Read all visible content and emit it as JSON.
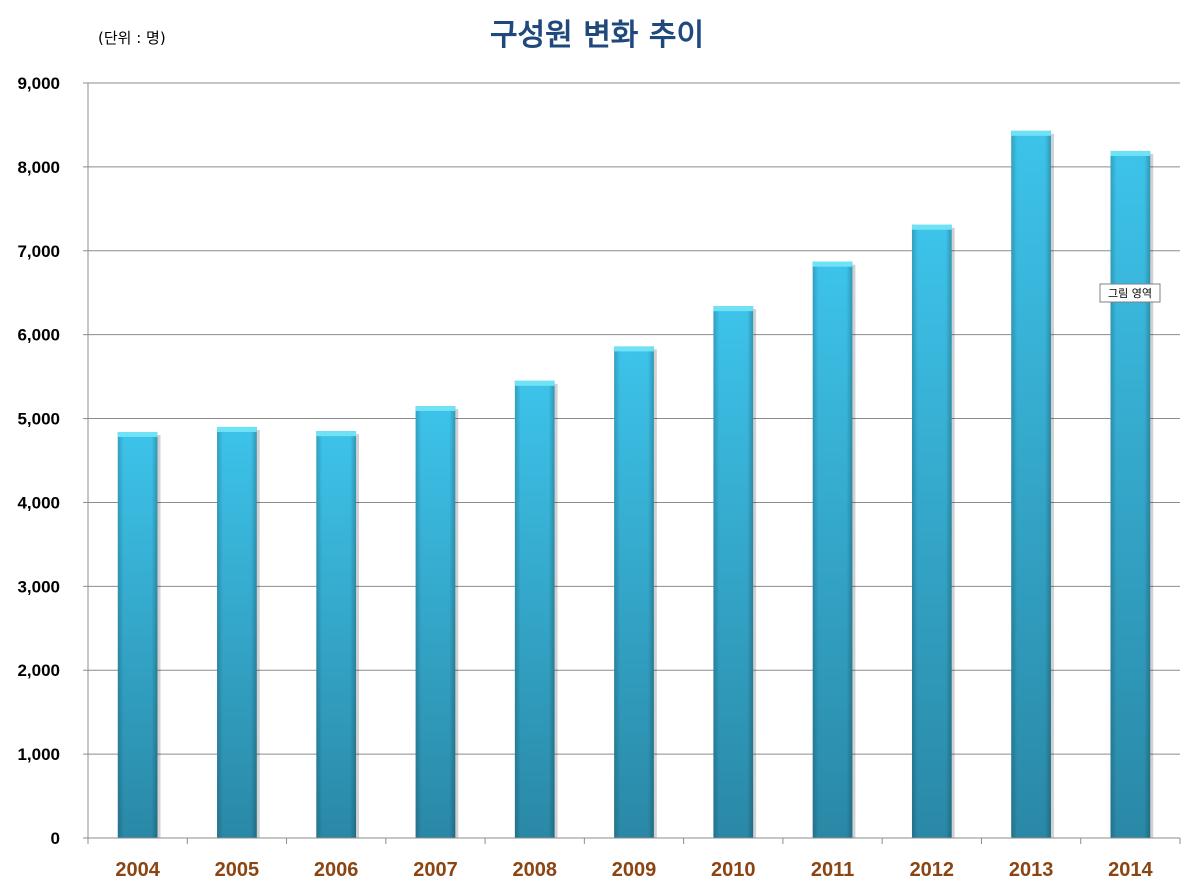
{
  "chart_data": {
    "type": "bar",
    "title": "구성원 변화 추이",
    "unit_label": "(단위 : 명)",
    "categories": [
      "2004",
      "2005",
      "2006",
      "2007",
      "2008",
      "2009",
      "2010",
      "2011",
      "2012",
      "2013",
      "2014"
    ],
    "values": [
      4840,
      4900,
      4850,
      5150,
      5450,
      5860,
      6340,
      6870,
      7310,
      8430,
      8190
    ],
    "ylim": [
      0,
      9000
    ],
    "yticks": [
      0,
      1000,
      2000,
      3000,
      4000,
      5000,
      6000,
      7000,
      8000,
      9000
    ],
    "ytick_labels": [
      "0",
      "1,000",
      "2,000",
      "3,000",
      "4,000",
      "5,000",
      "6,000",
      "7,000",
      "8,000",
      "9,000"
    ],
    "grid": true,
    "legend": "none",
    "colors": {
      "bar_top": "#3dc3ea",
      "bar_bottom": "#2a88a6",
      "bar_cap": "#6fe3f5",
      "grid": "#8c8c8c",
      "title": "#1f497d",
      "xtick": "#8b4513"
    },
    "tooltip": "그림 영역"
  }
}
